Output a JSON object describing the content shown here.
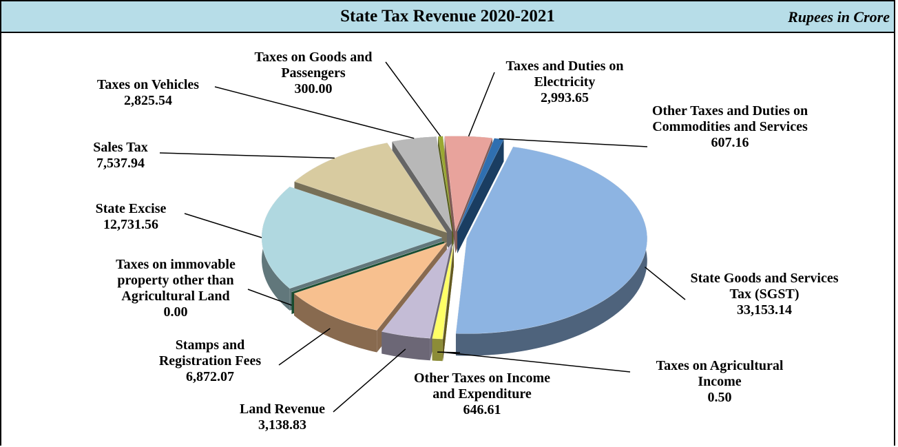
{
  "chart_data": {
    "type": "pie3d",
    "title": "State Tax Revenue 2020-2021",
    "subtitle": "Rupees in Crore",
    "categories": [
      "State Goods and Services Tax (SGST)",
      "Taxes on Agricultural Income",
      "Other Taxes on Income and Expenditure",
      "Land Revenue",
      "Stamps and Registration Fees",
      "Taxes on immovable property other than Agricultural Land",
      "State Excise",
      "Sales Tax",
      "Taxes on Vehicles",
      "Taxes on Goods and Passengers",
      "Taxes and Duties on Electricity",
      "Other Taxes and Duties on Commodities and Services"
    ],
    "values": [
      33153.14,
      0.5,
      646.61,
      3138.83,
      6872.07,
      0.0,
      12731.56,
      7537.94,
      2825.54,
      300.0,
      2993.65,
      607.16
    ],
    "value_labels": [
      "33,153.14",
      "0.50",
      "646.61",
      "3,138.83",
      "6,872.07",
      "0.00",
      "12,731.56",
      "7,537.94",
      "2,825.54",
      "300.00",
      "2,993.65",
      "607.16"
    ],
    "colors": [
      "#8db4e2",
      "#b5a33a",
      "#ffff66",
      "#c4bcd6",
      "#f7c08f",
      "#2e8b57",
      "#b0d8e0",
      "#d8cba0",
      "#b8b8b8",
      "#9aa832",
      "#e8a39c",
      "#2f6fb0"
    ]
  }
}
